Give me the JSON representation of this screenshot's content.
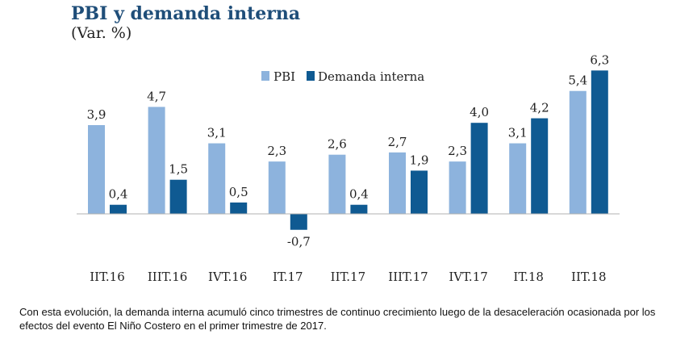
{
  "chart_data": {
    "type": "bar",
    "title": "PBI y demanda interna",
    "subtitle": "(Var. %)",
    "categories": [
      "IIT.16",
      "IIIT.16",
      "IVT.16",
      "IT.17",
      "IIT.17",
      "IIIT.17",
      "IVT.17",
      "IT.18",
      "IIT.18"
    ],
    "series": [
      {
        "name": "PBI",
        "color": "#8db3dd",
        "values": [
          3.9,
          4.7,
          3.1,
          2.3,
          2.6,
          2.7,
          2.3,
          3.1,
          5.4
        ],
        "labels": [
          "3,9",
          "4,7",
          "3,1",
          "2,3",
          "2,6",
          "2,7",
          "2,3",
          "3,1",
          "5,4"
        ]
      },
      {
        "name": "Demanda interna",
        "color": "#0f5a92",
        "values": [
          0.4,
          1.5,
          0.5,
          -0.7,
          0.4,
          1.9,
          4.0,
          4.2,
          6.3
        ],
        "labels": [
          "0,4",
          "1,5",
          "0,5",
          "-0,7",
          "0,4",
          "1,9",
          "4,0",
          "4,2",
          "6,3"
        ]
      }
    ],
    "ylim": [
      -1,
      7
    ],
    "legend": "top-center"
  },
  "caption": "Con esta evolución, la demanda interna acumuló cinco trimestres de continuo crecimiento luego de la desaceleración ocasionada por los efectos del evento El Niño Costero en el primer trimestre de 2017."
}
